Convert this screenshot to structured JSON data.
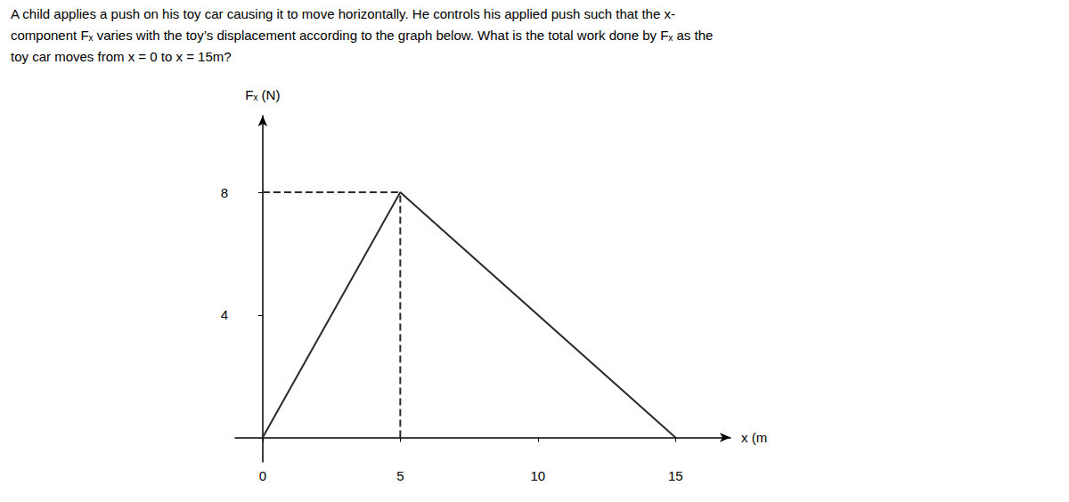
{
  "chart_data": {
    "type": "line",
    "annotations": [
      "A child applies a push on his toy car causing it to move horizontally. He controls his applied push such that the x-",
      "component Fₓ varies with the toy’s displacement according to the graph below. What is the total work done by Fₓ as the",
      "toy car moves from x = 0 to x = 15m?"
    ],
    "xlabel": "x (m",
    "ylabel": "Fₓ (N)",
    "series": [
      {
        "x": [
          0,
          5,
          15
        ],
        "values": [
          0,
          8,
          0
        ],
        "color": "#2a2a2a",
        "line_style": "solid"
      },
      {
        "x": [
          5,
          5
        ],
        "values": [
          0,
          8
        ],
        "color": "#2a2a2a",
        "line_style": "dashed"
      },
      {
        "x": [
          0,
          5
        ],
        "values": [
          8,
          8
        ],
        "color": "#2a2a2a",
        "line_style": "dashed"
      }
    ],
    "xlim": [
      -1,
      17
    ],
    "ylim": [
      -0.8,
      10.5
    ],
    "xticks": [
      0,
      5,
      10,
      15
    ],
    "yticks": [
      4,
      8
    ],
    "grid": false
  }
}
